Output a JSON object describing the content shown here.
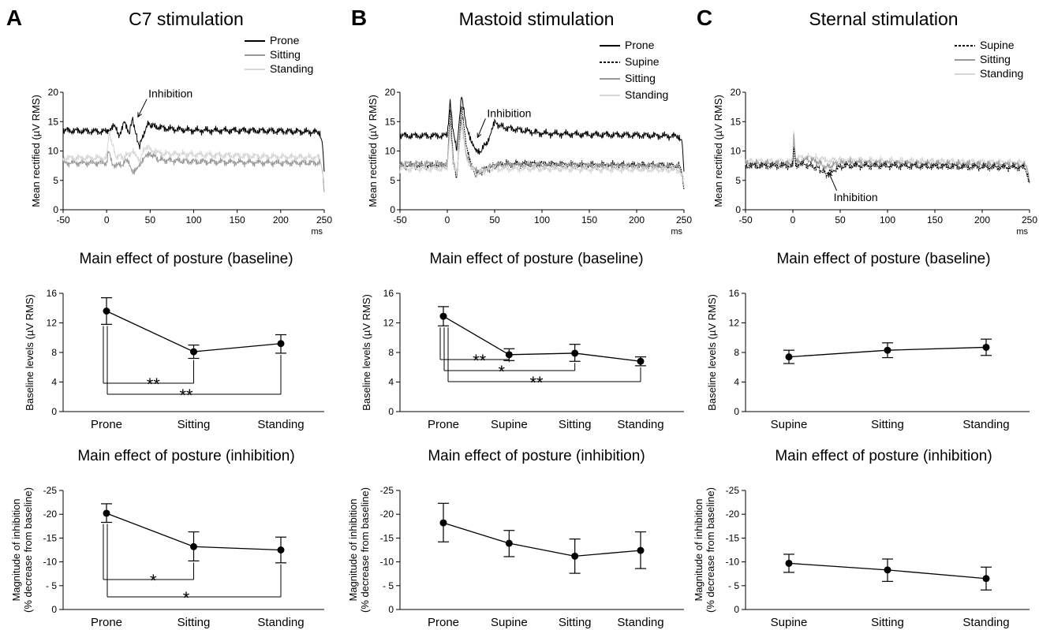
{
  "panels": [
    {
      "letter": "A",
      "title": "C7 stimulation",
      "trace": {
        "ylabel": "Mean rectified  (µV RMS)",
        "xunit": "ms",
        "xlim": [
          -50,
          250
        ],
        "ylim": [
          0,
          20
        ],
        "xticks": [
          -50,
          0,
          50,
          100,
          150,
          200,
          250
        ],
        "yticks": [
          0,
          5,
          10,
          15,
          20
        ],
        "annotation": "Inhibition",
        "legend": [
          {
            "name": "Prone",
            "color": "#000000",
            "dash": "solid"
          },
          {
            "name": "Sitting",
            "color": "#999999",
            "dash": "solid"
          },
          {
            "name": "Standing",
            "color": "#d6d6d6",
            "dash": "solid"
          }
        ],
        "series": [
          {
            "name": "Prone",
            "color": "#000000",
            "x": [
              -50,
              0,
              8,
              14,
              20,
              26,
              30,
              34,
              38,
              42,
              48,
              55,
              70,
              100,
              150,
              200,
              245,
              248,
              250
            ],
            "y": [
              13.5,
              13.3,
              14.5,
              12.6,
              14.8,
              13.2,
              15.5,
              12.5,
              10.8,
              12.8,
              14.6,
              14.2,
              13.8,
              13.5,
              13.5,
              13.4,
              13.2,
              11.0,
              6.5
            ]
          },
          {
            "name": "Sitting",
            "color": "#999999",
            "x": [
              -50,
              0,
              2,
              6,
              15,
              25,
              30,
              35,
              40,
              45,
              50,
              60,
              100,
              150,
              200,
              245,
              248,
              250
            ],
            "y": [
              8.0,
              8.0,
              10.5,
              7.8,
              7.5,
              8.5,
              6.5,
              7.0,
              7.8,
              9.0,
              9.6,
              8.5,
              8.2,
              8.1,
              8.0,
              8.0,
              6.5,
              3.0
            ]
          },
          {
            "name": "Standing",
            "color": "#d6d6d6",
            "x": [
              -50,
              0,
              3,
              10,
              20,
              30,
              38,
              45,
              52,
              60,
              100,
              150,
              200,
              245,
              248,
              250
            ],
            "y": [
              8.8,
              8.8,
              13.2,
              9.2,
              9.0,
              9.8,
              8.5,
              10.8,
              10.2,
              9.6,
              9.4,
              9.2,
              9.0,
              8.9,
              7.0,
              4.5
            ]
          }
        ]
      },
      "baseline": {
        "title": "Main effect of posture (baseline)",
        "ylabel": "Baseline levels  (µV RMS)",
        "categories": [
          "Prone",
          "Sitting",
          "Standing"
        ],
        "values": [
          13.6,
          8.1,
          9.2
        ],
        "err_low": [
          11.8,
          7.2,
          7.9
        ],
        "err_high": [
          15.4,
          9.0,
          10.4
        ],
        "ylim": [
          0,
          16
        ],
        "yticks": [
          0,
          4,
          8,
          12,
          16
        ],
        "significance": [
          {
            "from": 0,
            "to": 1,
            "label": "**"
          },
          {
            "from": 0,
            "to": 2,
            "label": "**"
          }
        ]
      },
      "inhibition": {
        "title": "Main effect of posture (inhibition)",
        "ylabel1": "Magnitude of inhibition",
        "ylabel2": "(% decrease from baseline)",
        "categories": [
          "Prone",
          "Sitting",
          "Standing"
        ],
        "values": [
          -20.2,
          -13.2,
          -12.5
        ],
        "err_low": [
          -18.3,
          -10.2,
          -9.8
        ],
        "err_high": [
          -22.2,
          -16.3,
          -15.2
        ],
        "ylim": [
          0,
          -25
        ],
        "ytick_values": [
          0,
          -5,
          -10,
          -15,
          -20,
          -25
        ],
        "ytick_labels": [
          "0",
          "- 5",
          "-10",
          "-15",
          "-20",
          "-25"
        ],
        "significance": [
          {
            "from": 0,
            "to": 1,
            "label": "*"
          },
          {
            "from": 0,
            "to": 2,
            "label": "*"
          }
        ]
      }
    },
    {
      "letter": "B",
      "title": "Mastoid stimulation",
      "trace": {
        "ylabel": "Mean rectified  (µV RMS)",
        "xunit": "ms",
        "xlim": [
          -50,
          250
        ],
        "ylim": [
          0,
          20
        ],
        "xticks": [
          -50,
          0,
          50,
          100,
          150,
          200,
          250
        ],
        "yticks": [
          0,
          5,
          10,
          15,
          20
        ],
        "annotation": "Inhibition",
        "legend": [
          {
            "name": "Prone",
            "color": "#000000",
            "dash": "solid"
          },
          {
            "name": "Supine",
            "color": "#000000",
            "dash": "dashed"
          },
          {
            "name": "Sitting",
            "color": "#999999",
            "dash": "solid"
          },
          {
            "name": "Standing",
            "color": "#d6d6d6",
            "dash": "solid"
          }
        ],
        "series": [
          {
            "name": "Prone",
            "color": "#000000",
            "dash": "solid",
            "x": [
              -50,
              0,
              3,
              6,
              10,
              15,
              20,
              25,
              30,
              35,
              42,
              50,
              60,
              100,
              150,
              200,
              245,
              248,
              250
            ],
            "y": [
              12.6,
              12.6,
              19.0,
              13.2,
              10.5,
              19.5,
              14.0,
              11.5,
              10.2,
              10.0,
              11.5,
              14.8,
              14.0,
              13.0,
              12.8,
              12.7,
              12.5,
              11.5,
              6.5
            ]
          },
          {
            "name": "Supine",
            "color": "#000000",
            "dash": "dashed",
            "x": [
              -50,
              0,
              3,
              6,
              10,
              15,
              20,
              25,
              30,
              40,
              50,
              60,
              100,
              150,
              200,
              245,
              248,
              250
            ],
            "y": [
              7.5,
              7.5,
              17.0,
              9.0,
              5.0,
              17.5,
              11.0,
              8.0,
              6.0,
              6.8,
              7.5,
              7.8,
              7.8,
              7.6,
              7.6,
              7.5,
              6.0,
              3.5
            ]
          },
          {
            "name": "Sitting",
            "color": "#999999",
            "dash": "solid",
            "x": [
              -50,
              0,
              3,
              6,
              10,
              15,
              20,
              25,
              30,
              40,
              50,
              100,
              150,
              200,
              245,
              248,
              250
            ],
            "y": [
              7.8,
              7.8,
              15.0,
              8.5,
              6.0,
              15.5,
              9.5,
              7.5,
              6.5,
              7.0,
              7.6,
              7.6,
              7.5,
              7.4,
              7.3,
              6.0,
              4.0
            ]
          },
          {
            "name": "Standing",
            "color": "#d6d6d6",
            "dash": "solid",
            "x": [
              -50,
              0,
              3,
              6,
              10,
              15,
              20,
              30,
              40,
              50,
              100,
              150,
              200,
              245,
              248,
              250
            ],
            "y": [
              7.0,
              7.0,
              14.0,
              8.0,
              6.5,
              14.5,
              8.5,
              6.0,
              6.8,
              7.0,
              7.0,
              6.9,
              6.9,
              6.8,
              5.5,
              4.0
            ]
          }
        ]
      },
      "baseline": {
        "title": "Main effect of posture (baseline)",
        "ylabel": "Baseline levels  (µV RMS)",
        "categories": [
          "Prone",
          "Supine",
          "Sitting",
          "Standing"
        ],
        "values": [
          12.9,
          7.7,
          7.9,
          6.8
        ],
        "err_low": [
          11.6,
          6.9,
          6.8,
          6.2
        ],
        "err_high": [
          14.2,
          8.5,
          9.1,
          7.4
        ],
        "ylim": [
          0,
          16
        ],
        "yticks": [
          0,
          4,
          8,
          12,
          16
        ],
        "significance": [
          {
            "from": 0,
            "to": 1,
            "label": "**"
          },
          {
            "from": 0,
            "to": 2,
            "label": "*"
          },
          {
            "from": 0,
            "to": 3,
            "label": "**"
          }
        ]
      },
      "inhibition": {
        "title": "Main effect of posture (inhibition)",
        "ylabel1": "Magnitude of inhibition",
        "ylabel2": "(% decrease from baseline)",
        "categories": [
          "Prone",
          "Supine",
          "Sitting",
          "Standing"
        ],
        "values": [
          -18.2,
          -13.9,
          -11.2,
          -12.4
        ],
        "err_low": [
          -14.2,
          -11.1,
          -7.6,
          -8.6
        ],
        "err_high": [
          -22.3,
          -16.6,
          -14.8,
          -16.3
        ],
        "ylim": [
          0,
          -25
        ],
        "ytick_values": [
          0,
          -5,
          -10,
          -15,
          -20,
          -25
        ],
        "ytick_labels": [
          "0",
          "- 5",
          "-10",
          "-15",
          "-20",
          "-25"
        ],
        "significance": []
      }
    },
    {
      "letter": "C",
      "title": "Sternal stimulation",
      "trace": {
        "ylabel": "Mean rectified  (µV RMS)",
        "xunit": "ms",
        "xlim": [
          -50,
          250
        ],
        "ylim": [
          0,
          20
        ],
        "xticks": [
          -50,
          0,
          50,
          100,
          150,
          200,
          250
        ],
        "yticks": [
          0,
          5,
          10,
          15,
          20
        ],
        "annotation": "Inhibition",
        "legend": [
          {
            "name": "Supine",
            "color": "#000000",
            "dash": "dashed"
          },
          {
            "name": "Sitting",
            "color": "#999999",
            "dash": "solid"
          },
          {
            "name": "Standing",
            "color": "#d6d6d6",
            "dash": "solid"
          }
        ],
        "series": [
          {
            "name": "Standing",
            "color": "#d6d6d6",
            "dash": "solid",
            "x": [
              -50,
              0,
              1,
              3,
              6,
              15,
              25,
              32,
              40,
              50,
              100,
              150,
              200,
              245,
              248,
              250
            ],
            "y": [
              8.2,
              8.2,
              13.5,
              8.5,
              8.8,
              9.0,
              8.8,
              8.6,
              8.4,
              8.5,
              8.3,
              8.2,
              8.1,
              8.0,
              7.0,
              5.0
            ]
          },
          {
            "name": "Sitting",
            "color": "#999999",
            "dash": "solid",
            "x": [
              -50,
              0,
              1,
              3,
              6,
              15,
              25,
              35,
              45,
              55,
              100,
              150,
              200,
              245,
              248,
              250
            ],
            "y": [
              7.8,
              7.8,
              12.5,
              8.0,
              8.2,
              8.5,
              8.3,
              7.2,
              7.8,
              8.0,
              7.9,
              7.8,
              7.7,
              7.6,
              6.5,
              4.5
            ]
          },
          {
            "name": "Supine",
            "color": "#000000",
            "dash": "dashed",
            "x": [
              -50,
              0,
              1,
              3,
              6,
              15,
              25,
              32,
              36,
              40,
              45,
              55,
              100,
              150,
              200,
              245,
              248,
              250
            ],
            "y": [
              7.5,
              7.5,
              11.0,
              7.5,
              7.8,
              7.6,
              7.2,
              6.5,
              6.0,
              6.5,
              7.0,
              7.5,
              7.5,
              7.4,
              7.3,
              7.2,
              6.0,
              4.5
            ]
          }
        ]
      },
      "baseline": {
        "title": "Main effect of posture (baseline)",
        "ylabel": "Baseline levels  (µV RMS)",
        "categories": [
          "Supine",
          "Sitting",
          "Standing"
        ],
        "values": [
          7.4,
          8.3,
          8.7
        ],
        "err_low": [
          6.5,
          7.3,
          7.6
        ],
        "err_high": [
          8.3,
          9.3,
          9.8
        ],
        "ylim": [
          0,
          16
        ],
        "yticks": [
          0,
          4,
          8,
          12,
          16
        ],
        "significance": []
      },
      "inhibition": {
        "title": "Main effect of posture (inhibition)",
        "ylabel1": "Magnitude of inhibition",
        "ylabel2": "(% decrease from baseline)",
        "categories": [
          "Supine",
          "Sitting",
          "Standing"
        ],
        "values": [
          -9.7,
          -8.3,
          -6.5
        ],
        "err_low": [
          -7.8,
          -5.9,
          -4.1
        ],
        "err_high": [
          -11.6,
          -10.6,
          -8.9
        ],
        "ylim": [
          0,
          -25
        ],
        "ytick_values": [
          0,
          -5,
          -10,
          -15,
          -20,
          -25
        ],
        "ytick_labels": [
          "0",
          "- 5",
          "-10",
          "-15",
          "-20",
          "-25"
        ],
        "significance": []
      }
    }
  ],
  "chart_data": [
    {
      "type": "line",
      "title": "C7 stimulation",
      "ylabel": "Mean rectified  (µV RMS)",
      "xunit": "ms",
      "xlim": [
        -50,
        250
      ],
      "ylim": [
        0,
        20
      ],
      "series": [
        "Prone",
        "Sitting",
        "Standing"
      ]
    },
    {
      "type": "line",
      "title": "Main effect of posture (baseline)",
      "categories": [
        "Prone",
        "Sitting",
        "Standing"
      ],
      "values": [
        13.6,
        8.1,
        9.2
      ],
      "ylim": [
        0,
        16
      ]
    },
    {
      "type": "line",
      "title": "Main effect of posture (inhibition)",
      "categories": [
        "Prone",
        "Sitting",
        "Standing"
      ],
      "values": [
        -20.2,
        -13.2,
        -12.5
      ],
      "ylim": [
        0,
        -25
      ]
    },
    {
      "type": "line",
      "title": "Mastoid stimulation",
      "ylabel": "Mean rectified  (µV RMS)",
      "xunit": "ms",
      "xlim": [
        -50,
        250
      ],
      "ylim": [
        0,
        20
      ],
      "series": [
        "Prone",
        "Supine",
        "Sitting",
        "Standing"
      ]
    },
    {
      "type": "line",
      "title": "Main effect of posture (baseline)",
      "categories": [
        "Prone",
        "Supine",
        "Sitting",
        "Standing"
      ],
      "values": [
        12.9,
        7.7,
        7.9,
        6.8
      ],
      "ylim": [
        0,
        16
      ]
    },
    {
      "type": "line",
      "title": "Main effect of posture (inhibition)",
      "categories": [
        "Prone",
        "Supine",
        "Sitting",
        "Standing"
      ],
      "values": [
        -18.2,
        -13.9,
        -11.2,
        -12.4
      ],
      "ylim": [
        0,
        -25
      ]
    },
    {
      "type": "line",
      "title": "Sternal stimulation",
      "ylabel": "Mean rectified  (µV RMS)",
      "xunit": "ms",
      "xlim": [
        -50,
        250
      ],
      "ylim": [
        0,
        20
      ],
      "series": [
        "Supine",
        "Sitting",
        "Standing"
      ]
    },
    {
      "type": "line",
      "title": "Main effect of posture (baseline)",
      "categories": [
        "Supine",
        "Sitting",
        "Standing"
      ],
      "values": [
        7.4,
        8.3,
        8.7
      ],
      "ylim": [
        0,
        16
      ]
    },
    {
      "type": "line",
      "title": "Main effect of posture (inhibition)",
      "categories": [
        "Supine",
        "Sitting",
        "Standing"
      ],
      "values": [
        -9.7,
        -8.3,
        -6.5
      ],
      "ylim": [
        0,
        -25
      ]
    }
  ]
}
